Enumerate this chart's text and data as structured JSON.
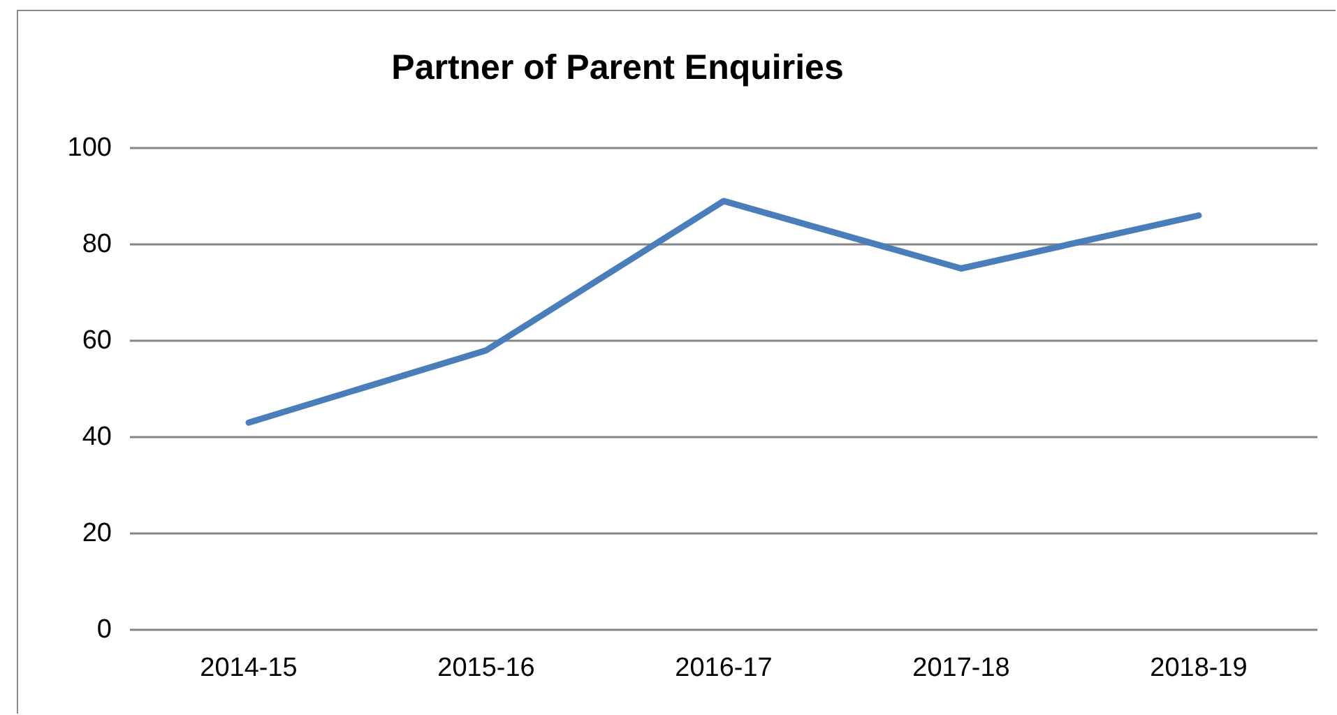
{
  "chart_data": {
    "type": "line",
    "title": "Partner of Parent Enquiries",
    "categories": [
      "2014-15",
      "2015-16",
      "2016-17",
      "2017-18",
      "2018-19"
    ],
    "series": [
      {
        "color": "#4a7ebb",
        "values": [
          43,
          58,
          89,
          75,
          86
        ]
      }
    ],
    "ylim": [
      0,
      100
    ],
    "yticks": [
      0,
      20,
      40,
      60,
      80,
      100
    ],
    "grid": "y",
    "marker": "none",
    "line_style": "solid"
  }
}
